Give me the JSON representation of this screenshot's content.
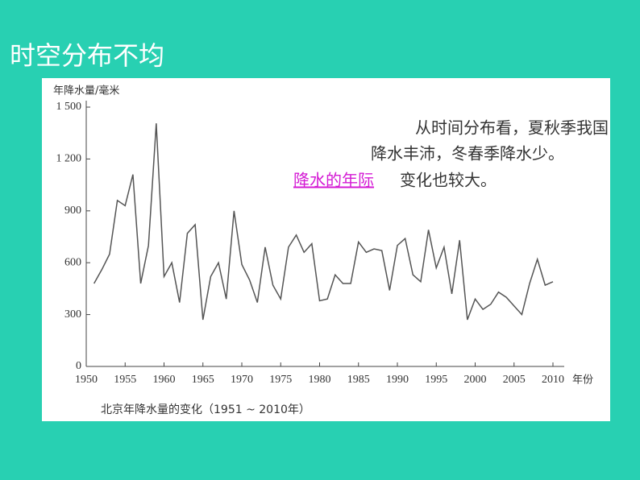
{
  "slide": {
    "title": "时空分布不均",
    "notes": [
      "从时间分布看，夏秋季我国",
      "降水丰沛，冬春季降水少。"
    ],
    "highlight": "降水的年际",
    "highlight_rest": "变化也较大。"
  },
  "chart_data": {
    "type": "line",
    "title": "北京年降水量的变化（1951 ~ 2010年）",
    "y_label": "年降水量/毫米",
    "x_label": "年份",
    "x": [
      1951,
      1952,
      1953,
      1954,
      1955,
      1956,
      1957,
      1958,
      1959,
      1960,
      1961,
      1962,
      1963,
      1964,
      1965,
      1966,
      1967,
      1968,
      1969,
      1970,
      1971,
      1972,
      1973,
      1974,
      1975,
      1976,
      1977,
      1978,
      1979,
      1980,
      1981,
      1982,
      1983,
      1984,
      1985,
      1986,
      1987,
      1988,
      1989,
      1990,
      1991,
      1992,
      1993,
      1994,
      1995,
      1996,
      1997,
      1998,
      1999,
      2000,
      2001,
      2002,
      2003,
      2004,
      2005,
      2006,
      2007,
      2008,
      2009,
      2010
    ],
    "values": [
      480,
      560,
      650,
      960,
      930,
      1110,
      480,
      700,
      1406,
      520,
      600,
      370,
      770,
      820,
      270,
      520,
      600,
      390,
      900,
      590,
      500,
      370,
      690,
      470,
      390,
      690,
      760,
      660,
      710,
      380,
      390,
      530,
      480,
      480,
      720,
      660,
      680,
      670,
      440,
      700,
      740,
      530,
      490,
      790,
      570,
      690,
      420,
      730,
      270,
      390,
      330,
      360,
      430,
      400,
      350,
      300,
      480,
      620,
      470,
      490
    ],
    "color": "#555555",
    "xlim": [
      1950,
      2010
    ],
    "xticks": [
      1950,
      1955,
      1960,
      1965,
      1970,
      1975,
      1980,
      1985,
      1990,
      1995,
      2000,
      2005,
      2010
    ],
    "ylim": [
      0,
      1500
    ],
    "yticks": [
      0,
      300,
      600,
      900,
      {
        "value": 1200,
        "label": "1 200"
      },
      {
        "value": 1500,
        "label": "1 500"
      }
    ]
  }
}
